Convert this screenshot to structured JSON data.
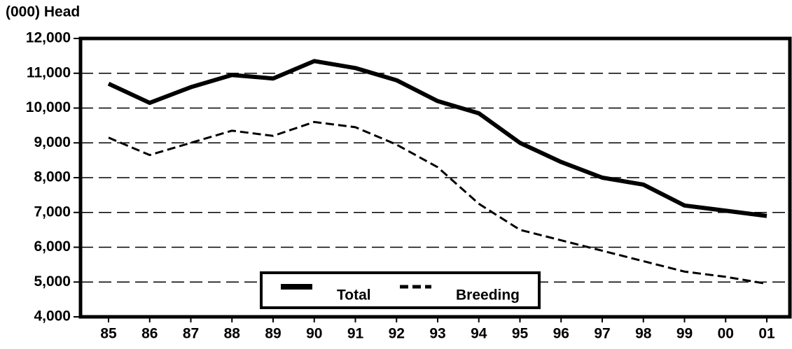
{
  "chart_data": {
    "type": "line",
    "ylabel": "(000) Head",
    "categories": [
      "85",
      "86",
      "87",
      "88",
      "89",
      "90",
      "91",
      "92",
      "93",
      "94",
      "95",
      "96",
      "97",
      "98",
      "99",
      "00",
      "01"
    ],
    "series": [
      {
        "name": "Total",
        "color": "#000000",
        "dash": "solid",
        "values": [
          10700,
          10150,
          10600,
          10950,
          10850,
          11350,
          11150,
          10800,
          10200,
          9850,
          9000,
          8450,
          8000,
          7800,
          7200,
          7050,
          6900
        ]
      },
      {
        "name": "Breeding",
        "color": "#000000",
        "dash": "dashed",
        "values": [
          9150,
          8650,
          9000,
          9350,
          9200,
          9600,
          9450,
          8950,
          8300,
          7250,
          6500,
          6200,
          5900,
          5600,
          5300,
          5150,
          4950
        ]
      }
    ],
    "ylim": [
      4000,
      12000
    ],
    "yticks": [
      {
        "value": 4000,
        "label": "4,000"
      },
      {
        "value": 5000,
        "label": "5,000"
      },
      {
        "value": 6000,
        "label": "6,000"
      },
      {
        "value": 7000,
        "label": "7,000"
      },
      {
        "value": 8000,
        "label": "8,000"
      },
      {
        "value": 9000,
        "label": "9,000"
      },
      {
        "value": 10000,
        "label": "10,000"
      },
      {
        "value": 11000,
        "label": "11,000"
      },
      {
        "value": 12000,
        "label": "12,000"
      }
    ],
    "grid": true,
    "legend": "lower center"
  }
}
